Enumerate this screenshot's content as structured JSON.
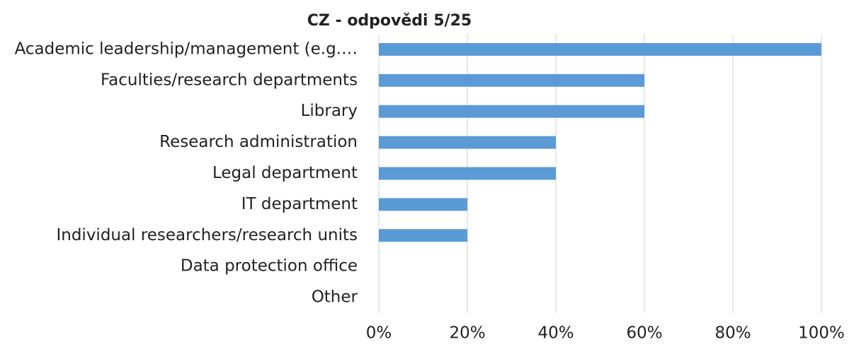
{
  "chart_data": {
    "type": "bar",
    "orientation": "horizontal",
    "title": "CZ - odpovědi 5/25",
    "categories": [
      "Academic leadership/management (e.g.…",
      "Faculties/research departments",
      "Library",
      "Research administration",
      "Legal department ",
      "IT department",
      "Individual researchers/research units",
      "Data protection office",
      "Other"
    ],
    "values": [
      100,
      60,
      60,
      40,
      40,
      20,
      20,
      0,
      0
    ],
    "color": "#5b9bd5",
    "xlim": [
      0,
      100
    ],
    "xticks": [
      {
        "value": 0,
        "label": "0%"
      },
      {
        "value": 20,
        "label": "20%"
      },
      {
        "value": 40,
        "label": "40%"
      },
      {
        "value": 60,
        "label": "60%"
      },
      {
        "value": 80,
        "label": "80%"
      },
      {
        "value": 100,
        "label": "100%"
      }
    ],
    "grid": true
  }
}
